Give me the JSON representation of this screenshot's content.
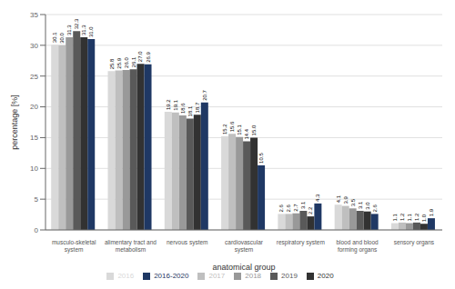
{
  "chart_data": {
    "type": "bar",
    "xlabel": "anatomical group",
    "ylabel": "percentage [%]",
    "categories": [
      "musculo-skeletal\nsystem",
      "alimentary tract and\nmetabolism",
      "nervous system",
      "cardiovascular\nsystem",
      "respiratory system",
      "blood and blood\nforming organs",
      "sensory organs"
    ],
    "series": [
      {
        "name": "2016",
        "color": "#d9d9d9",
        "values": [
          30.1,
          25.8,
          19.2,
          15.2,
          2.6,
          4.1,
          1.1
        ],
        "value_labels": [
          "30.1",
          "25.8",
          "19.2",
          "15.2",
          "2.6",
          "4.1",
          "1.1"
        ]
      },
      {
        "name": "2017",
        "color": "#bfbfbf",
        "values": [
          30.0,
          25.9,
          19.1,
          15.6,
          2.6,
          3.9,
          1.2
        ],
        "value_labels": [
          "30.0",
          "25.9",
          "19.1",
          "15.6",
          "2.6",
          "3.9",
          "1.2"
        ]
      },
      {
        "name": "2018",
        "color": "#999999",
        "values": [
          31.3,
          26.0,
          18.6,
          15.1,
          2.7,
          3.5,
          1.1
        ],
        "value_labels": [
          "31.3",
          "26.0",
          "18.6",
          "15.1",
          "2.7",
          "3.5",
          "1.1"
        ]
      },
      {
        "name": "2019",
        "color": "#595959",
        "values": [
          32.3,
          26.1,
          18.1,
          14.4,
          3.1,
          3.1,
          1.2
        ],
        "value_labels": [
          "32.3",
          "26.1",
          "18.1",
          "14.4",
          "3.1",
          "3.1",
          "1.2"
        ]
      },
      {
        "name": "2020",
        "color": "#323232",
        "values": [
          31.3,
          27.0,
          18.7,
          15.0,
          2.2,
          3.0,
          1.0
        ],
        "value_labels": [
          "31.3",
          "27.0",
          "18.7",
          "15.0",
          "2.2",
          "3.0",
          "1.0"
        ]
      },
      {
        "name": "2016-2020",
        "color": "#1f3864",
        "values": [
          31.0,
          26.9,
          20.7,
          10.5,
          4.3,
          2.6,
          1.9
        ],
        "value_labels": [
          "31.0",
          "26.9",
          "20.7",
          "10.5",
          "4.3",
          "2.6",
          "1.9"
        ]
      }
    ],
    "ylim": [
      0,
      35
    ],
    "yticks": [
      0,
      5,
      10,
      15,
      20,
      25,
      30,
      35
    ],
    "grid": true,
    "data_labels": true,
    "legend": "bottom"
  }
}
